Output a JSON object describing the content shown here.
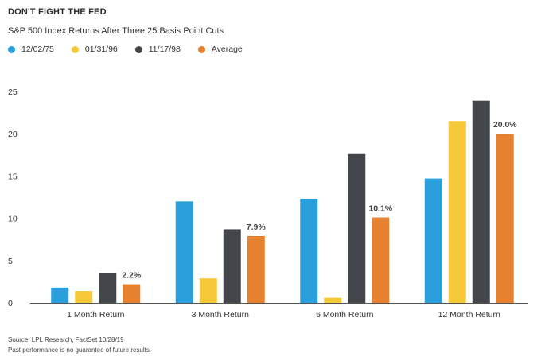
{
  "header": {
    "title": "DON'T FIGHT THE FED",
    "subtitle": "S&P 500 Index Returns After Three 25 Basis Point Cuts"
  },
  "footer": {
    "source": "Source: LPL Research, FactSet  10/28/19",
    "disclaimer": "Past performance is no guarantee of future results."
  },
  "chart_data": {
    "type": "bar",
    "categories": [
      "1 Month Return",
      "3 Month Return",
      "6 Month Return",
      "12 Month Return"
    ],
    "series": [
      {
        "name": "12/02/75",
        "color": "#2a9fdb",
        "values": [
          1.8,
          12.0,
          12.3,
          14.7
        ]
      },
      {
        "name": "01/31/96",
        "color": "#f5c93a",
        "values": [
          1.4,
          2.9,
          0.6,
          21.5
        ]
      },
      {
        "name": "11/17/98",
        "color": "#43474b",
        "values": [
          3.5,
          8.7,
          17.6,
          23.9
        ]
      },
      {
        "name": "Average",
        "color": "#e5812f",
        "values": [
          2.2,
          7.9,
          10.1,
          20.0
        ]
      }
    ],
    "data_labels": {
      "series": "Average",
      "labels": [
        "2.2%",
        "7.9%",
        "10.1%",
        "20.0%"
      ]
    },
    "y_ticks": [
      "0",
      "5",
      "10",
      "15",
      "20",
      "25"
    ],
    "ylim": [
      0,
      25
    ],
    "xlabel": "",
    "ylabel": "",
    "grid": false,
    "legend_position": "top-left"
  }
}
